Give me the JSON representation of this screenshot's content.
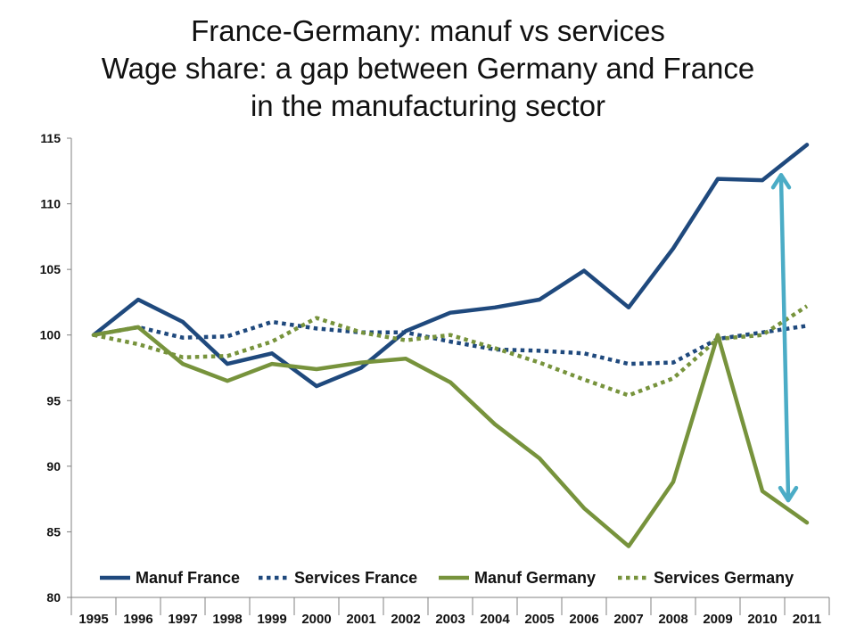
{
  "title_lines": [
    "France-Germany: manuf vs services",
    "Wage share: a gap between Germany and France",
    "in the manufacturing sector"
  ],
  "chart_data": {
    "type": "line",
    "x": [
      "1995",
      "1996",
      "1997",
      "1998",
      "1999",
      "2000",
      "2001",
      "2002",
      "2003",
      "2004",
      "2005",
      "2006",
      "2007",
      "2008",
      "2009",
      "2010",
      "2011"
    ],
    "ylim": [
      80,
      115
    ],
    "yticks": [
      80,
      85,
      90,
      95,
      100,
      105,
      110,
      115
    ],
    "grid": false,
    "legend": "bottom",
    "series": [
      {
        "name": "Manuf France",
        "color": "#1f497d",
        "dash": "solid",
        "values": [
          100,
          102.7,
          101.0,
          97.8,
          98.6,
          96.1,
          97.5,
          100.3,
          101.7,
          102.1,
          102.7,
          104.9,
          102.1,
          106.6,
          111.9,
          111.8,
          114.5
        ]
      },
      {
        "name": "Services France",
        "color": "#1f497d",
        "dash": "dotted",
        "values": [
          100,
          100.6,
          99.8,
          99.9,
          101.0,
          100.5,
          100.2,
          100.2,
          99.5,
          98.9,
          98.8,
          98.6,
          97.8,
          97.9,
          99.7,
          100.2,
          100.7
        ]
      },
      {
        "name": "Manuf Germany",
        "color": "#77933c",
        "dash": "solid",
        "values": [
          100,
          100.6,
          97.8,
          96.5,
          97.8,
          97.4,
          97.9,
          98.2,
          96.4,
          93.2,
          90.6,
          86.8,
          83.9,
          88.8,
          100.0,
          88.1,
          85.7
        ]
      },
      {
        "name": "Services Germany",
        "color": "#77933c",
        "dash": "dotted",
        "values": [
          100,
          99.3,
          98.3,
          98.4,
          99.5,
          101.3,
          100.2,
          99.6,
          100.0,
          99.0,
          97.9,
          96.6,
          95.4,
          96.7,
          99.7,
          100.0,
          102.2
        ]
      }
    ],
    "annotations": [
      {
        "type": "double-arrow",
        "color": "#4bacc6",
        "from": {
          "x": "2010",
          "y": 112.2
        },
        "to": {
          "x": "2010",
          "y": 87.4
        },
        "x_offset_fraction": 0.42
      }
    ]
  }
}
